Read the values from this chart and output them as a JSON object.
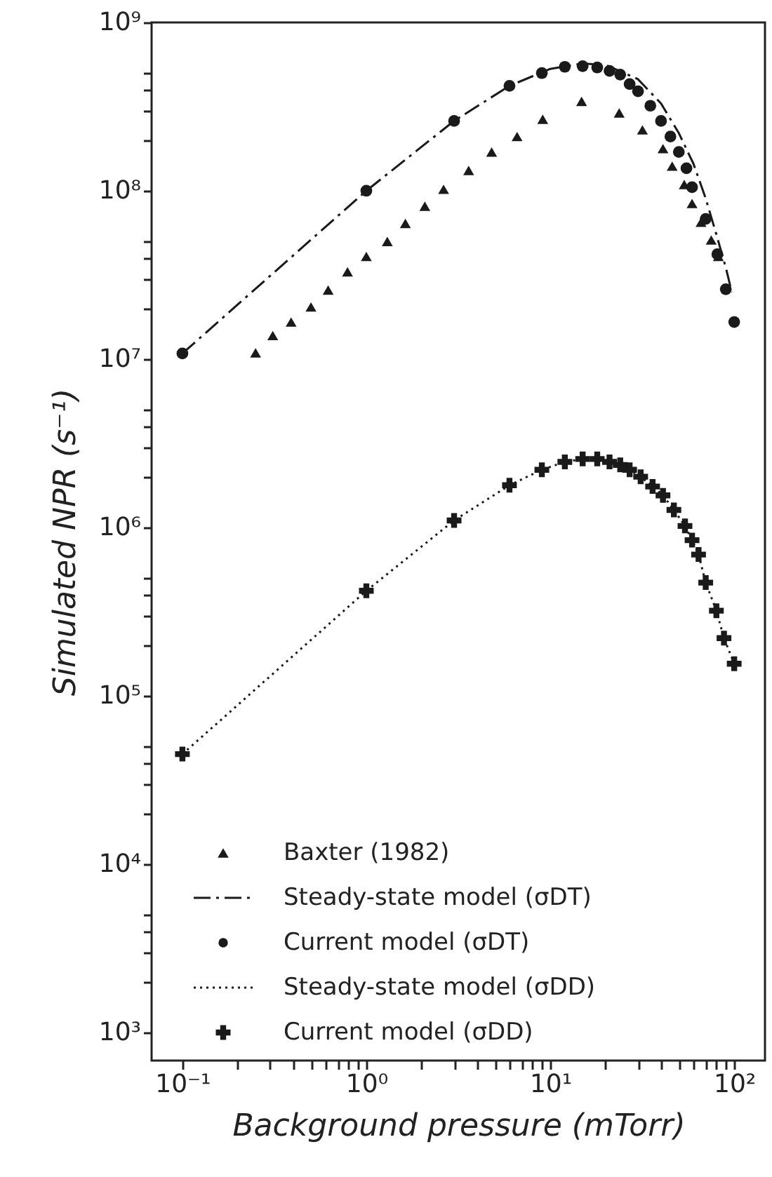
{
  "chart_data": {
    "type": "scatter",
    "xlabel": "Background pressure (mTorr)",
    "ylabel": "Simulated NPR (s⁻¹)",
    "log": "xy",
    "grid": false,
    "legend": "bottom left",
    "xlim": [
      0.068,
      147
    ],
    "ylim": [
      680,
      1000000000
    ],
    "xticks": [
      {
        "value": 0.1,
        "label": "10⁻¹"
      },
      {
        "value": 0.2,
        "label": null
      },
      {
        "value": 0.3,
        "label": null
      },
      {
        "value": 0.4,
        "label": null
      },
      {
        "value": 0.5,
        "label": null
      },
      {
        "value": 0.6,
        "label": null
      },
      {
        "value": 0.7,
        "label": null
      },
      {
        "value": 0.8,
        "label": null
      },
      {
        "value": 0.9,
        "label": null
      },
      {
        "value": 1,
        "label": "10⁰"
      },
      {
        "value": 2,
        "label": null
      },
      {
        "value": 3,
        "label": null
      },
      {
        "value": 4,
        "label": null
      },
      {
        "value": 5,
        "label": null
      },
      {
        "value": 6,
        "label": null
      },
      {
        "value": 7,
        "label": null
      },
      {
        "value": 8,
        "label": null
      },
      {
        "value": 9,
        "label": null
      },
      {
        "value": 10,
        "label": "10¹"
      },
      {
        "value": 20,
        "label": null
      },
      {
        "value": 30,
        "label": null
      },
      {
        "value": 40,
        "label": null
      },
      {
        "value": 50,
        "label": null
      },
      {
        "value": 60,
        "label": null
      },
      {
        "value": 70,
        "label": null
      },
      {
        "value": 80,
        "label": null
      },
      {
        "value": 90,
        "label": null
      },
      {
        "value": 100,
        "label": "10²"
      }
    ],
    "yticks": [
      {
        "value": 1000,
        "label": "10³"
      },
      {
        "value": 10000,
        "label": "10⁴"
      },
      {
        "value": 100000,
        "label": "10⁵"
      },
      {
        "value": 1000000,
        "label": "10⁶"
      },
      {
        "value": 10000000,
        "label": "10⁷"
      },
      {
        "value": 100000000,
        "label": "10⁸"
      },
      {
        "value": 1000000000,
        "label": "10⁹"
      },
      {
        "value": 2000,
        "label": null
      },
      {
        "value": 3000,
        "label": null
      },
      {
        "value": 4000,
        "label": null
      },
      {
        "value": 5000,
        "label": null
      },
      {
        "value": 20000,
        "label": null
      },
      {
        "value": 30000,
        "label": null
      },
      {
        "value": 40000,
        "label": null
      },
      {
        "value": 50000,
        "label": null
      },
      {
        "value": 200000,
        "label": null
      },
      {
        "value": 300000,
        "label": null
      },
      {
        "value": 400000,
        "label": null
      },
      {
        "value": 500000,
        "label": null
      },
      {
        "value": 2000000,
        "label": null
      },
      {
        "value": 3000000,
        "label": null
      },
      {
        "value": 4000000,
        "label": null
      },
      {
        "value": 5000000,
        "label": null
      },
      {
        "value": 20000000,
        "label": null
      },
      {
        "value": 30000000,
        "label": null
      },
      {
        "value": 40000000,
        "label": null
      },
      {
        "value": 50000000,
        "label": null
      },
      {
        "value": 200000000,
        "label": null
      },
      {
        "value": 300000000,
        "label": null
      },
      {
        "value": 400000000,
        "label": null
      },
      {
        "value": 500000000,
        "label": null
      }
    ],
    "series": [
      {
        "name": "Baxter (1982)",
        "marker": "triangle",
        "color": "#1a1a1a",
        "x": [
          0.25,
          0.31,
          0.39,
          0.5,
          0.62,
          0.79,
          1.0,
          1.3,
          1.63,
          2.08,
          2.63,
          3.6,
          4.8,
          6.6,
          9.1,
          14.8,
          23.7,
          31.7,
          41,
          46,
          53.5,
          59,
          66,
          75,
          82
        ],
        "values": [
          10900000,
          13800000,
          16600000,
          20400000,
          25700000,
          33000000,
          40700000,
          50000000,
          64000000,
          81000000,
          102000000,
          132000000,
          170000000,
          210000000,
          266000000,
          340000000,
          290000000,
          230000000,
          178000000,
          140000000,
          109000000,
          84000000,
          65000000,
          51000000,
          40700000
        ]
      },
      {
        "name": "Steady-state model (σDT)",
        "type": "line",
        "line_style": "dashdot",
        "color": "#1a1a1a",
        "x": [
          0.1,
          1,
          3,
          6,
          10,
          15,
          20,
          30,
          40,
          50,
          60,
          70,
          80,
          90,
          97
        ],
        "values": [
          10800000,
          100000000,
          260000000,
          420000000,
          530000000,
          570000000,
          560000000,
          460000000,
          330000000,
          220000000,
          145000000,
          90000000,
          55000000,
          35000000,
          25000000
        ]
      },
      {
        "name": "Current model (σDT)",
        "marker": "circle",
        "color": "#1a1a1a",
        "x": [
          0.1,
          1,
          3,
          6,
          9,
          12,
          15,
          18,
          21,
          24,
          27,
          30,
          35,
          40,
          45,
          50,
          55,
          59,
          70,
          81,
          90,
          100
        ],
        "values": [
          10800000,
          100000000,
          260000000,
          420000000,
          500000000,
          545000000,
          550000000,
          540000000,
          515000000,
          490000000,
          430000000,
          390000000,
          320000000,
          260000000,
          210000000,
          170000000,
          136000000,
          105000000,
          68000000,
          42000000,
          26000000,
          16600000
        ]
      },
      {
        "name": "Steady-state model (σDD)",
        "type": "line",
        "line_style": "dotted",
        "color": "#1a1a1a",
        "x": [
          0.1,
          1,
          3,
          6,
          9,
          12,
          15,
          18,
          21,
          24,
          27,
          31,
          36,
          41,
          47,
          54,
          59,
          64,
          70,
          80,
          88,
          100
        ],
        "values": [
          45000,
          420000,
          1100000,
          1780000,
          2200000,
          2450000,
          2550000,
          2550000,
          2450000,
          2350000,
          2200000,
          2000000,
          1750000,
          1550000,
          1270000,
          1020000,
          840000,
          690000,
          470000,
          320000,
          220000,
          155000
        ]
      },
      {
        "name": "Current model (σDD)",
        "marker": "cross",
        "color": "#1a1a1a",
        "x": [
          0.1,
          1,
          3,
          6,
          9,
          12,
          15,
          18,
          21,
          24,
          27,
          31,
          36,
          41,
          47,
          54,
          59,
          64,
          70,
          80,
          88,
          100
        ],
        "values": [
          45000,
          420000,
          1100000,
          1780000,
          2200000,
          2450000,
          2550000,
          2550000,
          2450000,
          2350000,
          2200000,
          2000000,
          1750000,
          1550000,
          1270000,
          1020000,
          840000,
          690000,
          470000,
          320000,
          220000,
          155000
        ]
      }
    ]
  }
}
